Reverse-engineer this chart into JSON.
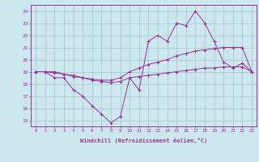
{
  "xlabel": "Windchill (Refroidissement éolien,°C)",
  "background_color": "#cce8ee",
  "grid_color": "#aacccc",
  "line_color": "#993399",
  "xlim": [
    -0.5,
    23.5
  ],
  "ylim": [
    14.5,
    24.5
  ],
  "yticks": [
    15,
    16,
    17,
    18,
    19,
    20,
    21,
    22,
    23,
    24
  ],
  "xticks": [
    0,
    1,
    2,
    3,
    4,
    5,
    6,
    7,
    8,
    9,
    10,
    11,
    12,
    13,
    14,
    15,
    16,
    17,
    18,
    19,
    20,
    21,
    22,
    23
  ],
  "series": [
    {
      "x": [
        0,
        1,
        2,
        3,
        4,
        5,
        6,
        7,
        8,
        9,
        10,
        11,
        12,
        13,
        14,
        15,
        16,
        17,
        18,
        19,
        20,
        21,
        22,
        23
      ],
      "y": [
        19,
        19,
        18.5,
        18.5,
        17.5,
        17,
        16.2,
        15.5,
        14.8,
        15.3,
        18.5,
        17.5,
        21.5,
        22,
        21.5,
        23,
        22.8,
        24,
        23,
        21.5,
        19.8,
        19.3,
        19.7,
        19
      ]
    },
    {
      "x": [
        0,
        1,
        2,
        3,
        4,
        5,
        6,
        7,
        8,
        9,
        10,
        11,
        12,
        13,
        14,
        15,
        16,
        17,
        18,
        19,
        20,
        21,
        22,
        23
      ],
      "y": [
        19,
        19,
        19,
        18.8,
        18.7,
        18.5,
        18.4,
        18.3,
        18.3,
        18.5,
        19.0,
        19.3,
        19.6,
        19.8,
        20.0,
        20.3,
        20.5,
        20.7,
        20.8,
        20.9,
        21.0,
        21.0,
        21.0,
        19
      ]
    },
    {
      "x": [
        0,
        1,
        2,
        3,
        4,
        5,
        6,
        7,
        8,
        9,
        10,
        11,
        12,
        13,
        14,
        15,
        16,
        17,
        18,
        19,
        20,
        21,
        22,
        23
      ],
      "y": [
        19,
        19,
        18.9,
        18.8,
        18.6,
        18.5,
        18.3,
        18.2,
        18.1,
        18.2,
        18.5,
        18.6,
        18.7,
        18.8,
        18.9,
        19.0,
        19.1,
        19.2,
        19.3,
        19.3,
        19.4,
        19.4,
        19.4,
        19
      ]
    }
  ]
}
